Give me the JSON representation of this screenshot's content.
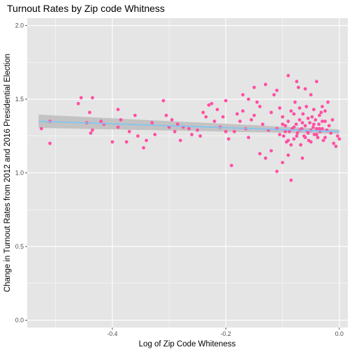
{
  "chart_data": {
    "type": "scatter",
    "title": "Turnout Rates by Zip code Whitness",
    "xlabel": "Log of Zip Code Whiteness",
    "ylabel": "Change in Turnout Rates from 2012 and 2016 Presidential Election",
    "xlim": [
      -0.55,
      0.015
    ],
    "ylim": [
      -0.05,
      2.05
    ],
    "x_ticks": [
      -0.4,
      -0.2,
      0.0
    ],
    "x_tick_labels": [
      "-0.4",
      "-0.2",
      "0.0"
    ],
    "y_ticks": [
      0.0,
      0.5,
      1.0,
      1.5,
      2.0
    ],
    "y_tick_labels": [
      "0.0",
      "0.5",
      "1.0",
      "1.5",
      "2.0"
    ],
    "grid": true,
    "background": "#e5e5e5",
    "point_color": "#ff4fa3",
    "fit_color": "#7ec4f6",
    "band_color": "#bdbdbd",
    "trend_line": {
      "method": "linear",
      "x": [
        -0.53,
        0.0
      ],
      "y": [
        1.35,
        1.28
      ],
      "ci_upper": [
        1.395,
        1.295
      ],
      "ci_lower": [
        1.305,
        1.265
      ]
    },
    "points": [
      {
        "x": -0.525,
        "y": 1.3
      },
      {
        "x": -0.51,
        "y": 1.2
      },
      {
        "x": -0.51,
        "y": 1.35
      },
      {
        "x": -0.46,
        "y": 1.47
      },
      {
        "x": -0.455,
        "y": 1.51
      },
      {
        "x": -0.445,
        "y": 1.34
      },
      {
        "x": -0.44,
        "y": 1.41
      },
      {
        "x": -0.438,
        "y": 1.27
      },
      {
        "x": -0.435,
        "y": 1.51
      },
      {
        "x": -0.435,
        "y": 1.29
      },
      {
        "x": -0.42,
        "y": 1.35
      },
      {
        "x": -0.415,
        "y": 1.33
      },
      {
        "x": -0.4,
        "y": 1.21
      },
      {
        "x": -0.39,
        "y": 1.31
      },
      {
        "x": -0.39,
        "y": 1.43
      },
      {
        "x": -0.385,
        "y": 1.36
      },
      {
        "x": -0.375,
        "y": 1.21
      },
      {
        "x": -0.37,
        "y": 1.28
      },
      {
        "x": -0.36,
        "y": 1.39
      },
      {
        "x": -0.355,
        "y": 1.25
      },
      {
        "x": -0.345,
        "y": 1.17
      },
      {
        "x": -0.34,
        "y": 1.22
      },
      {
        "x": -0.33,
        "y": 1.34
      },
      {
        "x": -0.325,
        "y": 1.26
      },
      {
        "x": -0.31,
        "y": 1.49
      },
      {
        "x": -0.305,
        "y": 1.39
      },
      {
        "x": -0.3,
        "y": 1.31
      },
      {
        "x": -0.295,
        "y": 1.36
      },
      {
        "x": -0.29,
        "y": 1.28
      },
      {
        "x": -0.285,
        "y": 1.33
      },
      {
        "x": -0.28,
        "y": 1.22
      },
      {
        "x": -0.275,
        "y": 1.31
      },
      {
        "x": -0.265,
        "y": 1.3
      },
      {
        "x": -0.26,
        "y": 1.26
      },
      {
        "x": -0.25,
        "y": 1.29
      },
      {
        "x": -0.245,
        "y": 1.25
      },
      {
        "x": -0.24,
        "y": 1.41
      },
      {
        "x": -0.235,
        "y": 1.38
      },
      {
        "x": -0.23,
        "y": 1.46
      },
      {
        "x": -0.225,
        "y": 1.47
      },
      {
        "x": -0.22,
        "y": 1.35
      },
      {
        "x": -0.215,
        "y": 1.43
      },
      {
        "x": -0.21,
        "y": 1.31
      },
      {
        "x": -0.205,
        "y": 1.38
      },
      {
        "x": -0.2,
        "y": 1.28
      },
      {
        "x": -0.195,
        "y": 1.23
      },
      {
        "x": -0.19,
        "y": 1.05
      },
      {
        "x": -0.185,
        "y": 1.28
      },
      {
        "x": -0.18,
        "y": 1.4
      },
      {
        "x": -0.175,
        "y": 1.35
      },
      {
        "x": -0.17,
        "y": 1.42
      },
      {
        "x": -0.165,
        "y": 1.3
      },
      {
        "x": -0.16,
        "y": 1.24
      },
      {
        "x": -0.155,
        "y": 1.36
      },
      {
        "x": -0.15,
        "y": 1.39
      },
      {
        "x": -0.145,
        "y": 1.48
      },
      {
        "x": -0.14,
        "y": 1.45
      },
      {
        "x": -0.135,
        "y": 1.33
      },
      {
        "x": -0.13,
        "y": 1.1
      },
      {
        "x": -0.125,
        "y": 1.29
      },
      {
        "x": -0.12,
        "y": 1.41
      },
      {
        "x": -0.115,
        "y": 1.53
      },
      {
        "x": -0.11,
        "y": 1.56
      },
      {
        "x": -0.105,
        "y": 1.44
      },
      {
        "x": -0.1,
        "y": 1.38
      },
      {
        "x": -0.098,
        "y": 1.25
      },
      {
        "x": -0.095,
        "y": 1.32
      },
      {
        "x": -0.093,
        "y": 1.21
      },
      {
        "x": -0.09,
        "y": 1.35
      },
      {
        "x": -0.088,
        "y": 1.28
      },
      {
        "x": -0.085,
        "y": 1.42
      },
      {
        "x": -0.083,
        "y": 1.3
      },
      {
        "x": -0.08,
        "y": 1.23
      },
      {
        "x": -0.078,
        "y": 1.48
      },
      {
        "x": -0.076,
        "y": 1.33
      },
      {
        "x": -0.074,
        "y": 1.27
      },
      {
        "x": -0.072,
        "y": 1.58
      },
      {
        "x": -0.07,
        "y": 1.36
      },
      {
        "x": -0.068,
        "y": 1.19
      },
      {
        "x": -0.066,
        "y": 1.3
      },
      {
        "x": -0.064,
        "y": 1.4
      },
      {
        "x": -0.062,
        "y": 1.25
      },
      {
        "x": -0.06,
        "y": 1.32
      },
      {
        "x": -0.058,
        "y": 1.45
      },
      {
        "x": -0.056,
        "y": 1.28
      },
      {
        "x": -0.054,
        "y": 1.22
      },
      {
        "x": -0.052,
        "y": 1.34
      },
      {
        "x": -0.05,
        "y": 1.29
      },
      {
        "x": -0.048,
        "y": 1.38
      },
      {
        "x": -0.046,
        "y": 1.31
      },
      {
        "x": -0.044,
        "y": 1.26
      },
      {
        "x": -0.042,
        "y": 1.36
      },
      {
        "x": -0.04,
        "y": 1.3
      },
      {
        "x": -0.038,
        "y": 1.24
      },
      {
        "x": -0.036,
        "y": 1.33
      },
      {
        "x": -0.034,
        "y": 1.28
      },
      {
        "x": -0.032,
        "y": 1.41
      },
      {
        "x": -0.03,
        "y": 1.3
      },
      {
        "x": -0.028,
        "y": 1.22
      },
      {
        "x": -0.025,
        "y": 1.35
      },
      {
        "x": -0.022,
        "y": 1.29
      },
      {
        "x": -0.02,
        "y": 1.48
      },
      {
        "x": -0.018,
        "y": 1.32
      },
      {
        "x": -0.015,
        "y": 1.27
      },
      {
        "x": -0.012,
        "y": 1.36
      },
      {
        "x": -0.01,
        "y": 1.2
      },
      {
        "x": -0.006,
        "y": 1.18
      },
      {
        "x": -0.003,
        "y": 1.25
      },
      {
        "x": 0.0,
        "y": 1.23
      },
      {
        "x": -0.09,
        "y": 1.66
      },
      {
        "x": -0.085,
        "y": 0.95
      },
      {
        "x": -0.11,
        "y": 1.01
      },
      {
        "x": -0.075,
        "y": 1.62
      },
      {
        "x": -0.06,
        "y": 1.57
      },
      {
        "x": -0.05,
        "y": 1.53
      },
      {
        "x": -0.04,
        "y": 1.62
      },
      {
        "x": -0.03,
        "y": 1.45
      },
      {
        "x": -0.065,
        "y": 1.1
      },
      {
        "x": -0.1,
        "y": 1.07
      },
      {
        "x": -0.09,
        "y": 1.12
      },
      {
        "x": -0.12,
        "y": 1.15
      },
      {
        "x": -0.14,
        "y": 1.13
      },
      {
        "x": -0.16,
        "y": 1.5
      },
      {
        "x": -0.17,
        "y": 1.53
      },
      {
        "x": -0.2,
        "y": 1.49
      },
      {
        "x": -0.13,
        "y": 1.6
      },
      {
        "x": -0.15,
        "y": 1.58
      },
      {
        "x": -0.08,
        "y": 1.4
      },
      {
        "x": -0.07,
        "y": 1.44
      },
      {
        "x": -0.055,
        "y": 1.37
      },
      {
        "x": -0.045,
        "y": 1.43
      },
      {
        "x": -0.035,
        "y": 1.39
      },
      {
        "x": -0.025,
        "y": 1.42
      },
      {
        "x": -0.11,
        "y": 1.3
      },
      {
        "x": -0.105,
        "y": 1.26
      },
      {
        "x": -0.1,
        "y": 1.33
      },
      {
        "x": -0.095,
        "y": 1.28
      },
      {
        "x": -0.09,
        "y": 1.22
      },
      {
        "x": -0.085,
        "y": 1.19
      },
      {
        "x": -0.08,
        "y": 1.31
      },
      {
        "x": -0.075,
        "y": 1.25
      },
      {
        "x": -0.07,
        "y": 1.29
      },
      {
        "x": -0.065,
        "y": 1.34
      },
      {
        "x": -0.06,
        "y": 1.24
      },
      {
        "x": -0.055,
        "y": 1.27
      },
      {
        "x": -0.05,
        "y": 1.21
      },
      {
        "x": -0.045,
        "y": 1.33
      },
      {
        "x": -0.04,
        "y": 1.26
      },
      {
        "x": -0.035,
        "y": 1.3
      },
      {
        "x": -0.03,
        "y": 1.35
      },
      {
        "x": -0.025,
        "y": 1.24
      }
    ]
  }
}
